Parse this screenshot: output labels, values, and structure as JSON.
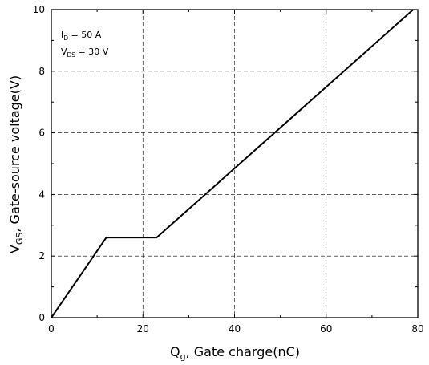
{
  "chart_data": {
    "type": "line",
    "x": [
      0,
      12,
      23,
      79
    ],
    "series": [
      {
        "values": [
          0,
          2.6,
          2.6,
          10
        ]
      }
    ],
    "xlim": [
      0,
      80
    ],
    "ylim": [
      0,
      10
    ],
    "x_ticks": [
      "0",
      "20",
      "40",
      "60",
      "80"
    ],
    "y_ticks": [
      "0",
      "2",
      "4",
      "6",
      "8",
      "10"
    ],
    "xlabel": {
      "main": "Q",
      "sub": "g",
      "rest": ", Gate charge(nC)"
    },
    "ylabel": {
      "main": "V",
      "sub": "GS",
      "rest": ", Gate-source voltage(V)"
    },
    "annotations": [
      {
        "main": "I",
        "sub": "D",
        "rest": " = 50 A"
      },
      {
        "main": "V",
        "sub": "DS",
        "rest": " = 30 V"
      }
    ],
    "grid": true,
    "line_color": "#000000",
    "grid_color": "#000000"
  }
}
